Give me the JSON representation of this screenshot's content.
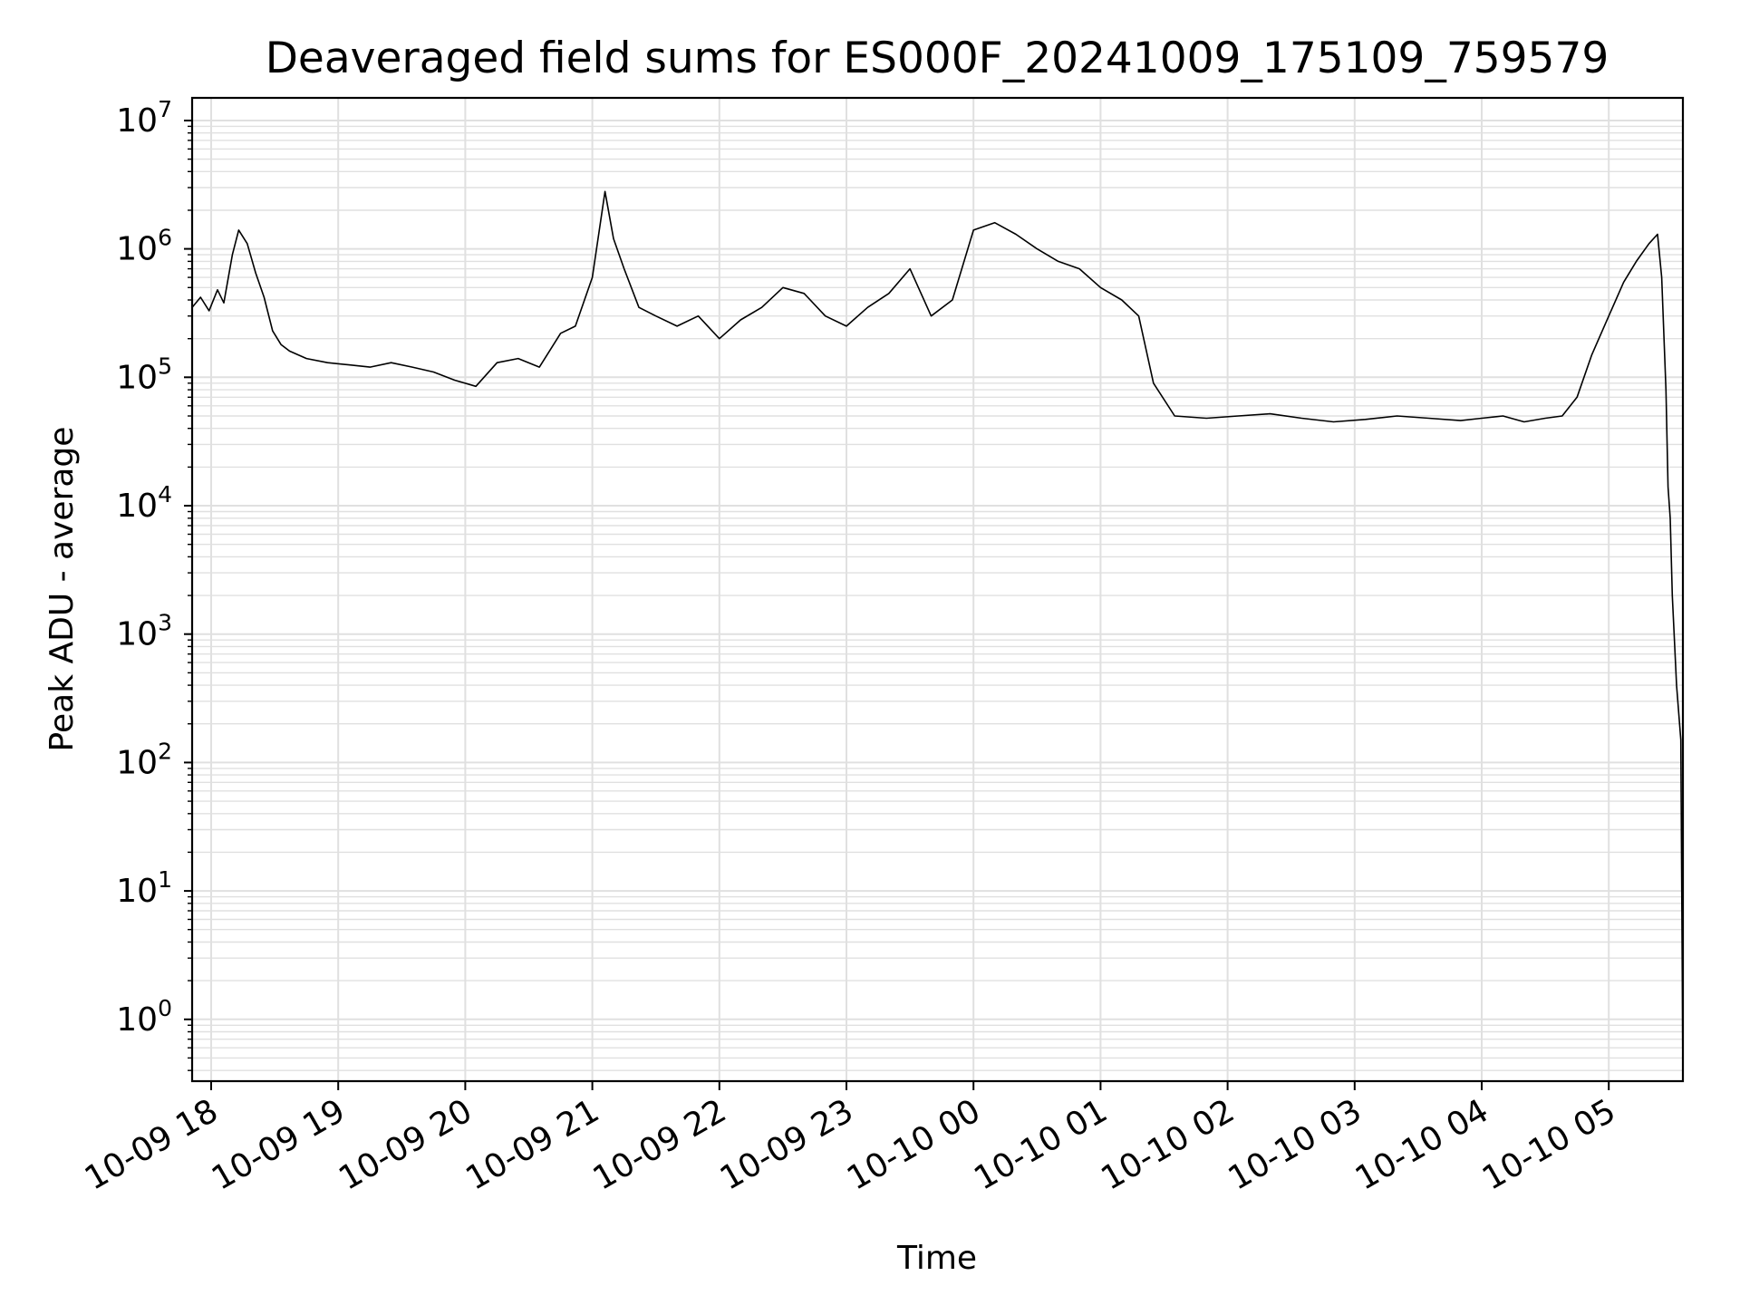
{
  "chart_data": {
    "type": "line",
    "title": "Deaveraged field sums for ES000F_20241009_175109_759579",
    "xlabel": "Time",
    "ylabel": "Peak ADU - average",
    "yscale": "log",
    "ylim": [
      0.33,
      15000000
    ],
    "xlim": [
      "2024-10-09 17:51",
      "2024-10-10 05:35"
    ],
    "grid": true,
    "line_color": "#000000",
    "grid_color": "#e0e0e0",
    "x_ticks": [
      {
        "label": "10-09 18",
        "t": "2024-10-09 18:00"
      },
      {
        "label": "10-09 19",
        "t": "2024-10-09 19:00"
      },
      {
        "label": "10-09 20",
        "t": "2024-10-09 20:00"
      },
      {
        "label": "10-09 21",
        "t": "2024-10-09 21:00"
      },
      {
        "label": "10-09 22",
        "t": "2024-10-09 22:00"
      },
      {
        "label": "10-09 23",
        "t": "2024-10-09 23:00"
      },
      {
        "label": "10-10 00",
        "t": "2024-10-10 00:00"
      },
      {
        "label": "10-10 01",
        "t": "2024-10-10 01:00"
      },
      {
        "label": "10-10 02",
        "t": "2024-10-10 02:00"
      },
      {
        "label": "10-10 03",
        "t": "2024-10-10 03:00"
      },
      {
        "label": "10-10 04",
        "t": "2024-10-10 04:00"
      },
      {
        "label": "10-10 05",
        "t": "2024-10-10 05:00"
      }
    ],
    "y_ticks": [
      {
        "base": "10",
        "exp": "0",
        "value": 1
      },
      {
        "base": "10",
        "exp": "1",
        "value": 10
      },
      {
        "base": "10",
        "exp": "2",
        "value": 100
      },
      {
        "base": "10",
        "exp": "3",
        "value": 1000
      },
      {
        "base": "10",
        "exp": "4",
        "value": 10000
      },
      {
        "base": "10",
        "exp": "5",
        "value": 100000
      },
      {
        "base": "10",
        "exp": "6",
        "value": 1000000
      },
      {
        "base": "10",
        "exp": "7",
        "value": 10000000
      }
    ],
    "series": [
      {
        "points": [
          [
            "2024-10-09 17:51",
            350000
          ],
          [
            "2024-10-09 17:55",
            420000
          ],
          [
            "2024-10-09 17:59",
            330000
          ],
          [
            "2024-10-09 18:03",
            480000
          ],
          [
            "2024-10-09 18:06",
            380000
          ],
          [
            "2024-10-09 18:10",
            900000
          ],
          [
            "2024-10-09 18:13",
            1400000
          ],
          [
            "2024-10-09 18:17",
            1100000
          ],
          [
            "2024-10-09 18:21",
            650000
          ],
          [
            "2024-10-09 18:25",
            420000
          ],
          [
            "2024-10-09 18:29",
            230000
          ],
          [
            "2024-10-09 18:33",
            180000
          ],
          [
            "2024-10-09 18:37",
            160000
          ],
          [
            "2024-10-09 18:45",
            140000
          ],
          [
            "2024-10-09 18:55",
            130000
          ],
          [
            "2024-10-09 19:05",
            125000
          ],
          [
            "2024-10-09 19:15",
            120000
          ],
          [
            "2024-10-09 19:25",
            130000
          ],
          [
            "2024-10-09 19:35",
            120000
          ],
          [
            "2024-10-09 19:45",
            110000
          ],
          [
            "2024-10-09 19:55",
            95000
          ],
          [
            "2024-10-09 20:05",
            85000
          ],
          [
            "2024-10-09 20:15",
            130000
          ],
          [
            "2024-10-09 20:25",
            140000
          ],
          [
            "2024-10-09 20:35",
            120000
          ],
          [
            "2024-10-09 20:45",
            220000
          ],
          [
            "2024-10-09 20:52",
            250000
          ],
          [
            "2024-10-09 21:00",
            600000
          ],
          [
            "2024-10-09 21:06",
            2800000
          ],
          [
            "2024-10-09 21:10",
            1200000
          ],
          [
            "2024-10-09 21:15",
            700000
          ],
          [
            "2024-10-09 21:22",
            350000
          ],
          [
            "2024-10-09 21:30",
            300000
          ],
          [
            "2024-10-09 21:40",
            250000
          ],
          [
            "2024-10-09 21:50",
            300000
          ],
          [
            "2024-10-09 22:00",
            200000
          ],
          [
            "2024-10-09 22:10",
            280000
          ],
          [
            "2024-10-09 22:20",
            350000
          ],
          [
            "2024-10-09 22:30",
            500000
          ],
          [
            "2024-10-09 22:40",
            450000
          ],
          [
            "2024-10-09 22:50",
            300000
          ],
          [
            "2024-10-09 23:00",
            250000
          ],
          [
            "2024-10-09 23:10",
            350000
          ],
          [
            "2024-10-09 23:20",
            450000
          ],
          [
            "2024-10-09 23:30",
            700000
          ],
          [
            "2024-10-09 23:40",
            300000
          ],
          [
            "2024-10-09 23:50",
            400000
          ],
          [
            "2024-10-10 00:00",
            1400000
          ],
          [
            "2024-10-10 00:10",
            1600000
          ],
          [
            "2024-10-10 00:20",
            1300000
          ],
          [
            "2024-10-10 00:30",
            1000000
          ],
          [
            "2024-10-10 00:40",
            800000
          ],
          [
            "2024-10-10 00:50",
            700000
          ],
          [
            "2024-10-10 01:00",
            500000
          ],
          [
            "2024-10-10 01:10",
            400000
          ],
          [
            "2024-10-10 01:18",
            300000
          ],
          [
            "2024-10-10 01:25",
            90000
          ],
          [
            "2024-10-10 01:35",
            50000
          ],
          [
            "2024-10-10 01:50",
            48000
          ],
          [
            "2024-10-10 02:05",
            50000
          ],
          [
            "2024-10-10 02:20",
            52000
          ],
          [
            "2024-10-10 02:35",
            48000
          ],
          [
            "2024-10-10 02:50",
            45000
          ],
          [
            "2024-10-10 03:05",
            47000
          ],
          [
            "2024-10-10 03:20",
            50000
          ],
          [
            "2024-10-10 03:35",
            48000
          ],
          [
            "2024-10-10 03:50",
            46000
          ],
          [
            "2024-10-10 04:00",
            48000
          ],
          [
            "2024-10-10 04:10",
            50000
          ],
          [
            "2024-10-10 04:20",
            45000
          ],
          [
            "2024-10-10 04:30",
            48000
          ],
          [
            "2024-10-10 04:38",
            50000
          ],
          [
            "2024-10-10 04:45",
            70000
          ],
          [
            "2024-10-10 04:52",
            150000
          ],
          [
            "2024-10-10 05:00",
            300000
          ],
          [
            "2024-10-10 05:07",
            550000
          ],
          [
            "2024-10-10 05:13",
            800000
          ],
          [
            "2024-10-10 05:19",
            1100000
          ],
          [
            "2024-10-10 05:23",
            1300000
          ],
          [
            "2024-10-10 05:25",
            600000
          ],
          [
            "2024-10-10 05:27",
            80000
          ],
          [
            "2024-10-10 05:28",
            14000
          ],
          [
            "2024-10-10 05:29",
            8000
          ],
          [
            "2024-10-10 05:30",
            2000
          ],
          [
            "2024-10-10 05:32",
            400
          ],
          [
            "2024-10-10 05:34",
            150
          ],
          [
            "2024-10-10 05:35",
            0.35
          ]
        ]
      }
    ]
  }
}
